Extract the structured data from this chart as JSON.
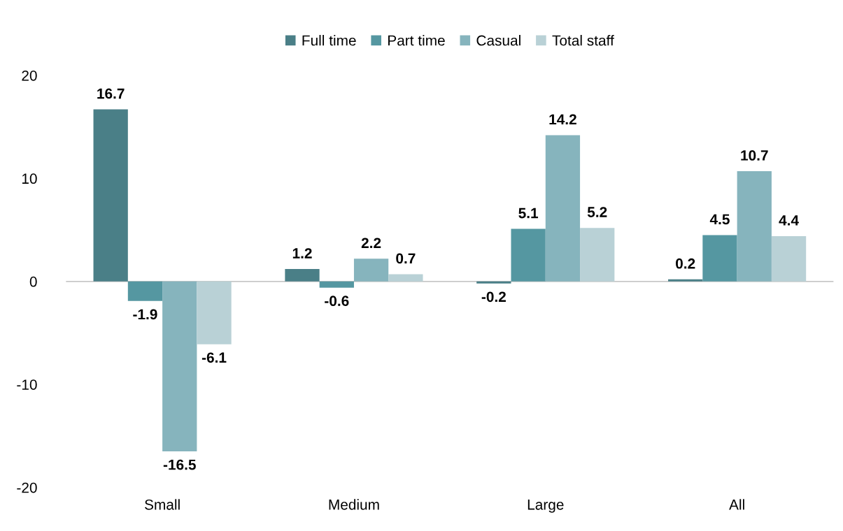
{
  "chart_data": {
    "type": "bar",
    "categories": [
      "Small",
      "Medium",
      "Large",
      "All"
    ],
    "series": [
      {
        "name": "Full time",
        "color": "#4a7f87",
        "values": [
          16.7,
          1.2,
          -0.2,
          0.2
        ]
      },
      {
        "name": "Part time",
        "color": "#5597a1",
        "values": [
          -1.9,
          -0.6,
          5.1,
          4.5
        ]
      },
      {
        "name": "Casual",
        "color": "#86b4bd",
        "values": [
          -16.5,
          2.2,
          14.2,
          10.7
        ]
      },
      {
        "name": "Total staff",
        "color": "#b9d1d6",
        "values": [
          -6.1,
          0.7,
          5.2,
          4.4
        ]
      }
    ],
    "ylim": [
      -20,
      20
    ],
    "yticks": [
      -20,
      -10,
      0,
      10,
      20
    ],
    "legend": "top",
    "data_labels": true
  }
}
